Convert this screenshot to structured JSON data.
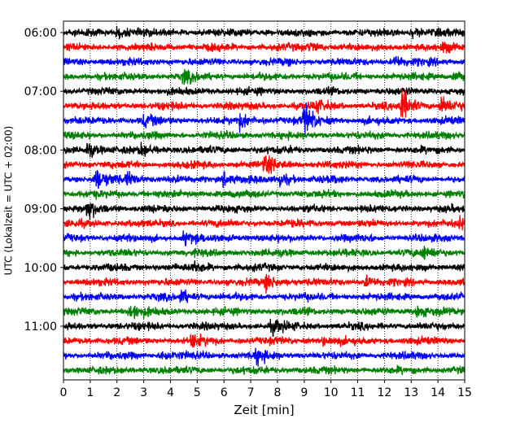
{
  "chart_data": {
    "type": "line",
    "title": "",
    "xlabel": "Zeit  [min]",
    "ylabel": "UTC (Lokalzeit = UTC + 02:00)",
    "x_range": [
      0,
      15
    ],
    "x_ticks": [
      0,
      1,
      2,
      3,
      4,
      5,
      6,
      7,
      8,
      9,
      10,
      11,
      12,
      13,
      14,
      15
    ],
    "x_tick_labels": [
      "0",
      "1",
      "2",
      "3",
      "4",
      "5",
      "6",
      "7",
      "8",
      "9",
      "10",
      "11",
      "12",
      "13",
      "14",
      "15"
    ],
    "y_tick_labels": [
      "06:00",
      "07:00",
      "08:00",
      "09:00",
      "10:00",
      "11:00"
    ],
    "y_tick_rows": [
      0,
      4,
      8,
      12,
      16,
      20
    ],
    "grid": "vertical dotted",
    "trace_interval_min": 15,
    "trace_colors": [
      "#000000",
      "#ff0000",
      "#0000ff",
      "#008000"
    ],
    "traces": [
      {
        "start": "06:00",
        "color": "#000000"
      },
      {
        "start": "06:15",
        "color": "#ff0000"
      },
      {
        "start": "06:30",
        "color": "#0000ff"
      },
      {
        "start": "06:45",
        "color": "#008000"
      },
      {
        "start": "07:00",
        "color": "#000000"
      },
      {
        "start": "07:15",
        "color": "#ff0000"
      },
      {
        "start": "07:30",
        "color": "#0000ff"
      },
      {
        "start": "07:45",
        "color": "#008000"
      },
      {
        "start": "08:00",
        "color": "#000000"
      },
      {
        "start": "08:15",
        "color": "#ff0000"
      },
      {
        "start": "08:30",
        "color": "#0000ff"
      },
      {
        "start": "08:45",
        "color": "#008000"
      },
      {
        "start": "09:00",
        "color": "#000000"
      },
      {
        "start": "09:15",
        "color": "#ff0000"
      },
      {
        "start": "09:30",
        "color": "#0000ff"
      },
      {
        "start": "09:45",
        "color": "#008000"
      },
      {
        "start": "10:00",
        "color": "#000000"
      },
      {
        "start": "10:15",
        "color": "#ff0000"
      },
      {
        "start": "10:30",
        "color": "#0000ff"
      },
      {
        "start": "10:45",
        "color": "#008000"
      },
      {
        "start": "11:00",
        "color": "#000000"
      },
      {
        "start": "11:15",
        "color": "#ff0000"
      },
      {
        "start": "11:30",
        "color": "#0000ff"
      },
      {
        "start": "11:45",
        "color": "#008000"
      }
    ],
    "events": [
      {
        "trace": 0,
        "x": 2.0,
        "amp": 0.25
      },
      {
        "trace": 0,
        "x": 13.0,
        "amp": 0.2
      },
      {
        "trace": 1,
        "x": 9.2,
        "amp": 0.2
      },
      {
        "trace": 1,
        "x": 14.2,
        "amp": 0.2
      },
      {
        "trace": 2,
        "x": 12.4,
        "amp": 0.3
      },
      {
        "trace": 3,
        "x": 4.5,
        "amp": 0.25
      },
      {
        "trace": 3,
        "x": 14.6,
        "amp": 0.2
      },
      {
        "trace": 5,
        "x": 12.6,
        "amp": 0.85
      },
      {
        "trace": 5,
        "x": 14.1,
        "amp": 0.4
      },
      {
        "trace": 5,
        "x": 9.4,
        "amp": 0.25
      },
      {
        "trace": 6,
        "x": 9.0,
        "amp": 0.75
      },
      {
        "trace": 6,
        "x": 6.6,
        "amp": 0.35
      },
      {
        "trace": 6,
        "x": 3.0,
        "amp": 0.25
      },
      {
        "trace": 8,
        "x": 0.9,
        "amp": 0.35
      },
      {
        "trace": 8,
        "x": 2.9,
        "amp": 0.25
      },
      {
        "trace": 9,
        "x": 7.5,
        "amp": 0.4
      },
      {
        "trace": 10,
        "x": 1.2,
        "amp": 0.45
      },
      {
        "trace": 10,
        "x": 2.4,
        "amp": 0.35
      },
      {
        "trace": 10,
        "x": 6.0,
        "amp": 0.3
      },
      {
        "trace": 10,
        "x": 8.1,
        "amp": 0.3
      },
      {
        "trace": 12,
        "x": 0.9,
        "amp": 0.4
      },
      {
        "trace": 13,
        "x": 14.8,
        "amp": 0.25
      },
      {
        "trace": 14,
        "x": 4.5,
        "amp": 0.3
      },
      {
        "trace": 15,
        "x": 13.5,
        "amp": 0.25
      },
      {
        "trace": 16,
        "x": 4.9,
        "amp": 0.2
      },
      {
        "trace": 17,
        "x": 7.6,
        "amp": 0.35
      },
      {
        "trace": 17,
        "x": 11.3,
        "amp": 0.25
      },
      {
        "trace": 18,
        "x": 4.4,
        "amp": 0.3
      },
      {
        "trace": 19,
        "x": 2.5,
        "amp": 0.4
      },
      {
        "trace": 19,
        "x": 13.2,
        "amp": 0.25
      },
      {
        "trace": 20,
        "x": 7.8,
        "amp": 0.3
      },
      {
        "trace": 21,
        "x": 4.8,
        "amp": 0.3
      },
      {
        "trace": 21,
        "x": 9.7,
        "amp": 0.2
      },
      {
        "trace": 22,
        "x": 3.7,
        "amp": 0.25
      },
      {
        "trace": 22,
        "x": 7.2,
        "amp": 0.3
      }
    ]
  }
}
